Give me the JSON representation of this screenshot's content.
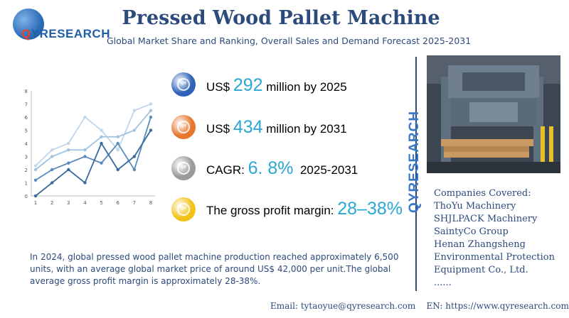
{
  "logo": {
    "text_q": "Q",
    "text_rest": "YRESEARCH",
    "globe_letters": "QY"
  },
  "header": {
    "title": "Pressed Wood Pallet Machine",
    "subtitle": "Global Market Share and Ranking, Overall Sales and Demand Forecast 2025-2031"
  },
  "stats": [
    {
      "prefix": "US$",
      "value": "292",
      "suffix": "million by 2025",
      "badge_color": "#2f62b8",
      "badge_label": "QY"
    },
    {
      "prefix": "US$",
      "value": "434",
      "suffix": "million by 2031",
      "badge_color": "#e8762c",
      "badge_label": "QY"
    },
    {
      "prefix": "CAGR:",
      "value": "6. 8%",
      "suffix": "2025-2031",
      "badge_color": "#9a9a9a",
      "badge_label": "QY"
    },
    {
      "prefix": "The gross profit margin:",
      "value": "28–38%",
      "suffix": "",
      "badge_color": "#f2c21a",
      "badge_label": "QY"
    }
  ],
  "description": "In 2024, global pressed wood pallet machine production reached approximately 6,500 units, with an average global market price of around US$ 42,000 per unit.The global average gross profit margin is approximately 28-38%.",
  "vertical_brand": "QYRESEARCH",
  "companies": {
    "heading": "Companies Covered:",
    "items": [
      "ThoYu Machinery",
      "SHJLPACK Machinery",
      "SaintyCo Group",
      "Henan Zhangsheng",
      "Environmental Protection",
      "Equipment Co., Ltd.",
      "......"
    ]
  },
  "footer": {
    "email": "Email:  tytaoyue@qyresearch.com",
    "website": "EN: https://www.qyresearch.com"
  },
  "chart_data": {
    "type": "line",
    "x": [
      1,
      2,
      3,
      4,
      5,
      6,
      7,
      8
    ],
    "ylim": [
      0,
      8
    ],
    "yticks": [
      0,
      1,
      2,
      3,
      4,
      5,
      6,
      7,
      8
    ],
    "grid": false,
    "series": [
      {
        "values": [
          2.3,
          3.5,
          4.0,
          6.0,
          5.0,
          3.5,
          6.5,
          7.0
        ],
        "color": "#c2d6ea"
      },
      {
        "values": [
          2.0,
          3.0,
          3.5,
          3.5,
          4.5,
          4.5,
          5.0,
          6.5
        ],
        "color": "#a3c2e0"
      },
      {
        "values": [
          1.2,
          2.0,
          2.5,
          3.0,
          2.5,
          4.0,
          2.0,
          6.0
        ],
        "color": "#5a8bbf"
      },
      {
        "values": [
          0.0,
          1.0,
          2.0,
          1.0,
          4.0,
          2.0,
          3.0,
          5.0
        ],
        "color": "#3a6a9f"
      }
    ]
  }
}
